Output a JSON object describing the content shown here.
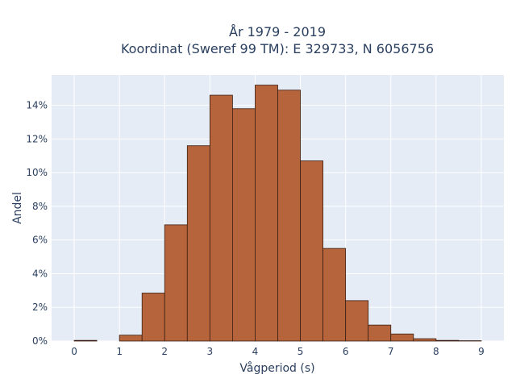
{
  "chart_data": {
    "type": "bar",
    "title_line1": "År 1979 - 2019",
    "title_line2": "Koordinat (Sweref 99 TM): E 329733, N 6056756",
    "xlabel": "Vågperiod (s)",
    "ylabel": "Andel",
    "bin_width": 0.5,
    "bins": [
      {
        "start": 0.0,
        "value": 0.04
      },
      {
        "start": 0.5,
        "value": 0.0
      },
      {
        "start": 1.0,
        "value": 0.35
      },
      {
        "start": 1.5,
        "value": 2.85
      },
      {
        "start": 2.0,
        "value": 6.9
      },
      {
        "start": 2.5,
        "value": 11.6
      },
      {
        "start": 3.0,
        "value": 14.6
      },
      {
        "start": 3.5,
        "value": 13.8
      },
      {
        "start": 4.0,
        "value": 15.2
      },
      {
        "start": 4.5,
        "value": 14.9
      },
      {
        "start": 5.0,
        "value": 10.7
      },
      {
        "start": 5.5,
        "value": 5.5
      },
      {
        "start": 6.0,
        "value": 2.4
      },
      {
        "start": 6.5,
        "value": 0.95
      },
      {
        "start": 7.0,
        "value": 0.42
      },
      {
        "start": 7.5,
        "value": 0.14
      },
      {
        "start": 8.0,
        "value": 0.04
      },
      {
        "start": 8.5,
        "value": 0.02
      }
    ],
    "xlim": [
      -0.5,
      9.5
    ],
    "ylim": [
      0,
      15.8
    ],
    "xticks": [
      "0",
      "1",
      "2",
      "3",
      "4",
      "5",
      "6",
      "7",
      "8",
      "9"
    ],
    "yticks": [
      "0%",
      "2%",
      "4%",
      "6%",
      "8%",
      "10%",
      "12%",
      "14%"
    ],
    "grid": true,
    "colors": {
      "plot_background": "#e5ecf6",
      "grid": "#ffffff",
      "bar_fill": "#b5643c",
      "bar_edge": "#3b1f12",
      "text": "#2a3f5f"
    }
  }
}
